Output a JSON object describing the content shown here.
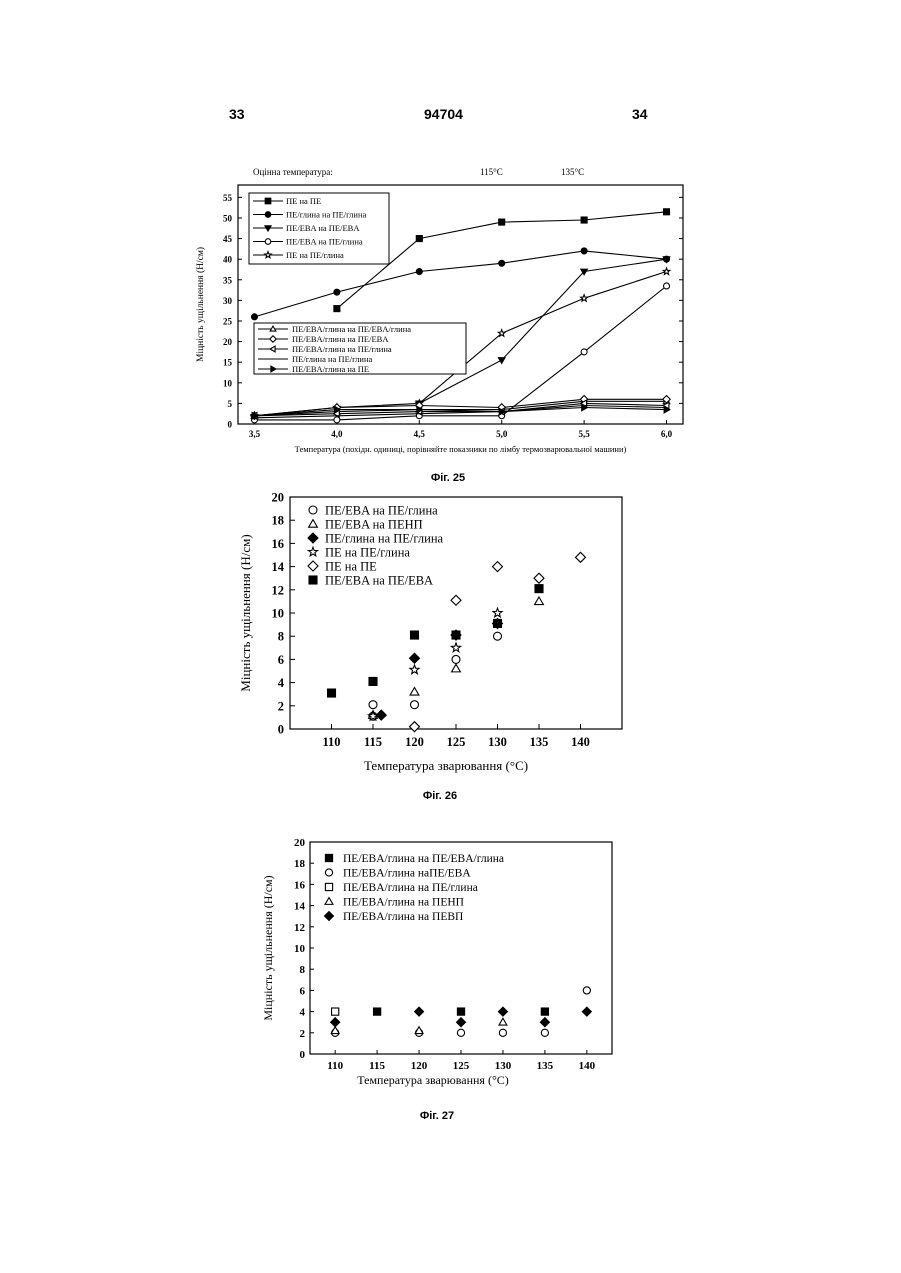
{
  "header": {
    "left_page": "33",
    "center": "94704",
    "right_page": "34"
  },
  "figures": {
    "fig25": {
      "caption": "Фіг. 25",
      "top_label": "Оцінна температура:",
      "temp_a": "115°C",
      "temp_b": "135°C"
    },
    "fig26": {
      "caption": "Фіг. 26"
    },
    "fig27": {
      "caption": "Фіг. 27"
    }
  },
  "chart_data": [
    {
      "type": "line",
      "x": [
        3.5,
        4.0,
        4.5,
        5.0,
        5.5,
        6.0
      ],
      "tick_labels": [
        "3,5",
        "4,0",
        "4,5",
        "5,0",
        "5,5",
        "6,0"
      ],
      "ylabel": "Міцність ущільнення (Н/см)",
      "xlabel": "Температура (похідн. одиниці, порівняйте показники по лімбу термозварювальної машини)",
      "ylim": [
        0,
        58
      ],
      "yticks": [
        0,
        5,
        10,
        15,
        20,
        25,
        30,
        35,
        40,
        45,
        50,
        55
      ],
      "series": [
        {
          "name": "ПЕ на ПЕ",
          "marker": "square-filled",
          "x": [
            4.0,
            4.5,
            5.0,
            5.5,
            6.0
          ],
          "values": [
            28,
            45,
            49,
            49.5,
            51.5
          ]
        },
        {
          "name": "ПЕ/глина на ПЕ/глина",
          "marker": "circle-filled",
          "x": [
            3.5,
            4.0,
            4.5,
            5.0,
            5.5,
            6.0
          ],
          "values": [
            26,
            32,
            37,
            39,
            42,
            40
          ]
        },
        {
          "name": "ПЕ/EBA на ПЕ/EBA",
          "marker": "tri-down-filled",
          "x": [
            4.5,
            5.0,
            5.5,
            6.0
          ],
          "values": [
            5,
            15.5,
            37,
            40
          ]
        },
        {
          "name": "ПЕ/EBA на ПЕ/глина",
          "marker": "circle-open",
          "x": [
            3.5,
            4.0,
            4.5,
            5.0,
            5.5,
            6.0
          ],
          "values": [
            1,
            1,
            2,
            2,
            17.5,
            33.5
          ]
        },
        {
          "name": "ПЕ на ПЕ/глина",
          "marker": "star-open",
          "x": [
            3.5,
            4.0,
            4.5,
            5.0,
            5.5,
            6.0
          ],
          "values": [
            2,
            4,
            5,
            22,
            30.5,
            37
          ]
        },
        {
          "name": "ПЕ/EBA/глина на ПЕ/EBA/глина",
          "marker": "tri-up-open",
          "x": [
            3.5,
            4.0,
            4.5,
            5.0,
            5.5,
            6.0
          ],
          "values": [
            2,
            3,
            3.5,
            3.5,
            5.5,
            5.5
          ]
        },
        {
          "name": "ПЕ/EBA/глина на ПЕ/EBA",
          "marker": "diamond-open",
          "x": [
            3.5,
            4.0,
            4.5,
            5.0,
            5.5,
            6.0
          ],
          "values": [
            2,
            4,
            4.5,
            4,
            6,
            6
          ]
        },
        {
          "name": "ПЕ/EBA/глина на ПЕ/глина",
          "marker": "tri-left-open",
          "x": [
            3.5,
            4.0,
            4.5,
            5.0,
            5.5,
            6.0
          ],
          "values": [
            2,
            2.5,
            3,
            3,
            5,
            4.5
          ]
        },
        {
          "name": "ПЕ/глина на ПЕ/глина",
          "marker": "none",
          "x": [
            3.5,
            4.0,
            4.5,
            5.0,
            5.5,
            6.0
          ],
          "values": [
            1.5,
            2,
            2.5,
            3,
            4.5,
            4
          ]
        },
        {
          "name": "ПЕ/EBA/глина на ПЕ",
          "marker": "tri-right-filled",
          "x": [
            3.5,
            4.0,
            4.5,
            5.0,
            5.5,
            6.0
          ],
          "values": [
            2,
            3.5,
            3.5,
            3,
            4,
            3.5
          ]
        }
      ]
    },
    {
      "type": "scatter",
      "xlabel": "Температура зварювання (°C)",
      "ylabel": "Міцність ущільнення (Н/см)",
      "xlim": [
        105,
        145
      ],
      "ylim": [
        0,
        20
      ],
      "xticks": [
        110,
        115,
        120,
        125,
        130,
        135,
        140
      ],
      "yticks": [
        0,
        2,
        4,
        6,
        8,
        10,
        12,
        14,
        16,
        18,
        20
      ],
      "series": [
        {
          "name": "ПЕ/EBA на ПЕ/глина",
          "marker": "circle-open",
          "x": [
            115,
            115,
            120,
            125,
            130
          ],
          "values": [
            1.1,
            2.1,
            2.1,
            6,
            8
          ]
        },
        {
          "name": "ПЕ/EBA на ПЕНП",
          "marker": "tri-up-open",
          "x": [
            115,
            120,
            125,
            135
          ],
          "values": [
            1.2,
            3.2,
            5.2,
            11
          ]
        },
        {
          "name": "ПЕ/глина на ПЕ/глина",
          "marker": "diamond-filled",
          "x": [
            116,
            120,
            125,
            130
          ],
          "values": [
            1.2,
            6.1,
            8.1,
            9.1
          ]
        },
        {
          "name": "ПЕ на ПЕ/глина",
          "marker": "star-open",
          "x": [
            115,
            120,
            125,
            130
          ],
          "values": [
            1.1,
            5.1,
            7,
            10
          ]
        },
        {
          "name": "ПЕ на ПЕ",
          "marker": "diamond-open",
          "x": [
            120,
            125,
            130,
            135,
            140
          ],
          "values": [
            0.2,
            11.1,
            14,
            13,
            14.8
          ]
        },
        {
          "name": "ПЕ/EBA на ПЕ/EBA",
          "marker": "square-filled",
          "x": [
            110,
            115,
            120,
            125,
            130,
            135
          ],
          "values": [
            3.1,
            4.1,
            8.1,
            8.1,
            9.1,
            12.1
          ]
        }
      ]
    },
    {
      "type": "scatter",
      "xlabel": "Температура зварювання (°C)",
      "ylabel": "Міцність ущільнення (Н/см)",
      "xlim": [
        107,
        143
      ],
      "ylim": [
        0,
        20
      ],
      "xticks": [
        110,
        115,
        120,
        125,
        130,
        135,
        140
      ],
      "yticks": [
        0,
        2,
        4,
        6,
        8,
        10,
        12,
        14,
        16,
        18,
        20
      ],
      "series": [
        {
          "name": "ПЕ/EBA/глина на ПЕ/EBA/глина",
          "marker": "square-filled",
          "x": [
            115,
            125,
            135
          ],
          "values": [
            4,
            4,
            4
          ]
        },
        {
          "name": "ПЕ/EBA/глина наПЕ/EBA",
          "marker": "circle-open",
          "x": [
            110,
            120,
            125,
            130,
            135,
            140
          ],
          "values": [
            2,
            2,
            2,
            2,
            2,
            6
          ]
        },
        {
          "name": "ПЕ/EBA/глина на ПЕ/глина",
          "marker": "square-open",
          "x": [
            110
          ],
          "values": [
            4
          ]
        },
        {
          "name": "ПЕ/EBA/глина на ПЕНП",
          "marker": "tri-up-open",
          "x": [
            110,
            120,
            130
          ],
          "values": [
            2.2,
            2.2,
            3
          ]
        },
        {
          "name": "ПЕ/EBA/глина на ПЕВП",
          "marker": "diamond-filled",
          "x": [
            110,
            120,
            125,
            130,
            135,
            140
          ],
          "values": [
            3,
            4,
            3,
            4,
            3,
            4
          ]
        }
      ]
    }
  ]
}
